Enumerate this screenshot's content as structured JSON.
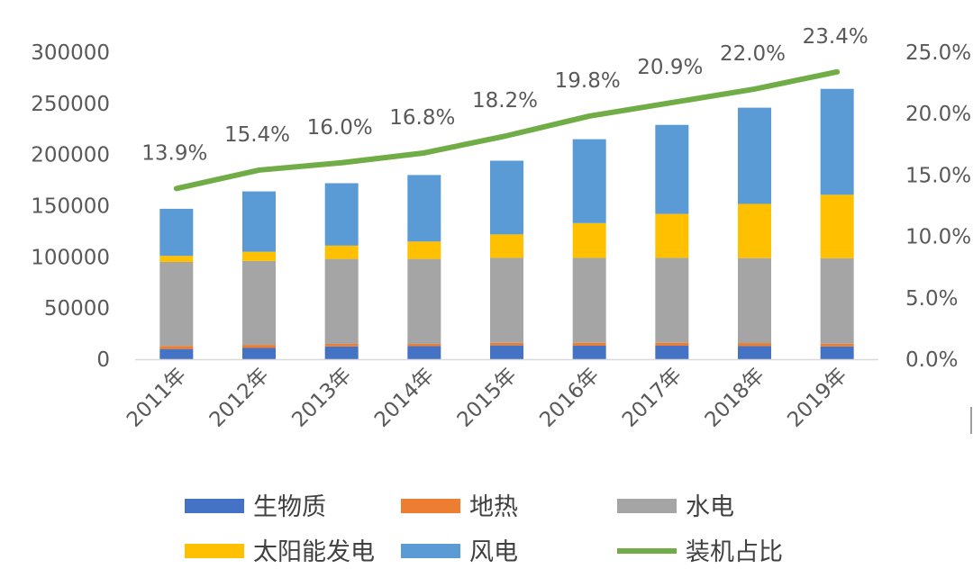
{
  "chart_data": {
    "type": "bar+line",
    "stacked": true,
    "categories": [
      "2011年",
      "2012年",
      "2013年",
      "2014年",
      "2015年",
      "2016年",
      "2017年",
      "2018年",
      "2019年"
    ],
    "series": [
      {
        "name": "生物质",
        "type": "bar",
        "color": "#4472C4",
        "values": [
          10000,
          11000,
          12500,
          12800,
          13500,
          13200,
          13200,
          12800,
          12500
        ]
      },
      {
        "name": "地热",
        "type": "bar",
        "color": "#ED7D31",
        "values": [
          3000,
          3000,
          2500,
          2200,
          2500,
          2800,
          2800,
          3000,
          2700
        ]
      },
      {
        "name": "水电",
        "type": "bar",
        "color": "#A5A5A5",
        "values": [
          82000,
          82000,
          83000,
          83000,
          83000,
          83000,
          83000,
          83000,
          83500
        ]
      },
      {
        "name": "太阳能发电",
        "type": "bar",
        "color": "#FFC000",
        "values": [
          6000,
          9000,
          13000,
          17000,
          23000,
          34000,
          43000,
          53000,
          62000
        ]
      },
      {
        "name": "风电",
        "type": "bar",
        "color": "#5B9BD5",
        "values": [
          46000,
          59000,
          61000,
          65000,
          72000,
          82000,
          87000,
          94000,
          103500
        ]
      },
      {
        "name": "装机占比",
        "type": "line",
        "axis": "right",
        "color": "#70AD47",
        "values": [
          13.9,
          15.4,
          16.0,
          16.8,
          18.2,
          19.8,
          20.9,
          22.0,
          23.4
        ],
        "labels": [
          "13.9%",
          "15.4%",
          "16.0%",
          "16.8%",
          "18.2%",
          "19.8%",
          "20.9%",
          "22.0%",
          "23.4%"
        ]
      }
    ],
    "y_left": {
      "min": 0,
      "max": 300000,
      "step": 50000,
      "ticks": [
        "0",
        "50000",
        "100000",
        "150000",
        "200000",
        "250000",
        "300000"
      ]
    },
    "y_right": {
      "min": 0,
      "max": 25,
      "step": 5,
      "ticks": [
        "0.0%",
        "5.0%",
        "10.0%",
        "15.0%",
        "20.0%",
        "25.0%"
      ]
    },
    "gridlines": false,
    "legend_position": "bottom"
  }
}
